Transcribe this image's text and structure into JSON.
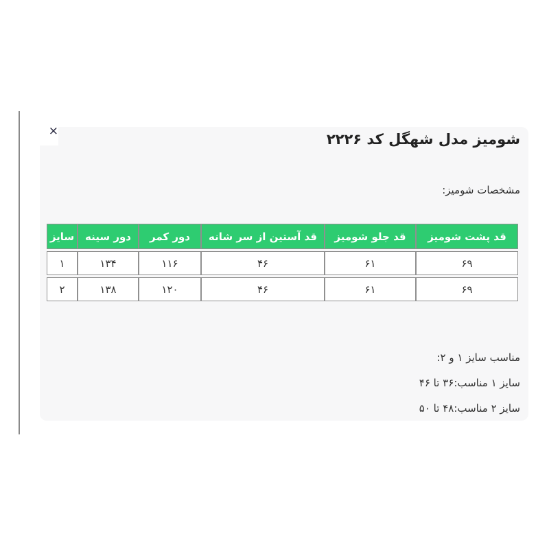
{
  "modal": {
    "close_icon": "×",
    "title": "شومیز مدل شهگل کد ۲۲۲۶",
    "subtitle": "مشخصات شومیز:",
    "size_table": {
      "columns": [
        "قد پشت شومیز",
        "قد جلو شومیز",
        "قد آستین از سر شانه",
        "دور کمر",
        "دور سینه",
        "سایز"
      ],
      "rows": [
        [
          "۶۹",
          "۶۱",
          "۴۶",
          "۱۱۶",
          "۱۳۴",
          "۱"
        ],
        [
          "۶۹",
          "۶۱",
          "۴۶",
          "۱۲۰",
          "۱۳۸",
          "۲"
        ]
      ]
    },
    "notes": [
      "مناسب سایز ۱ و ۲:",
      "سایز ۱ مناسب:۳۶ تا ۴۶",
      "سایز ۲ مناسب:۴۸ تا ۵۰"
    ],
    "colors": {
      "header_bg": "#2ecc71",
      "header_text": "#ffffff",
      "border": "#909090",
      "panel_bg": "#f7f7f8",
      "text": "#333333"
    }
  }
}
